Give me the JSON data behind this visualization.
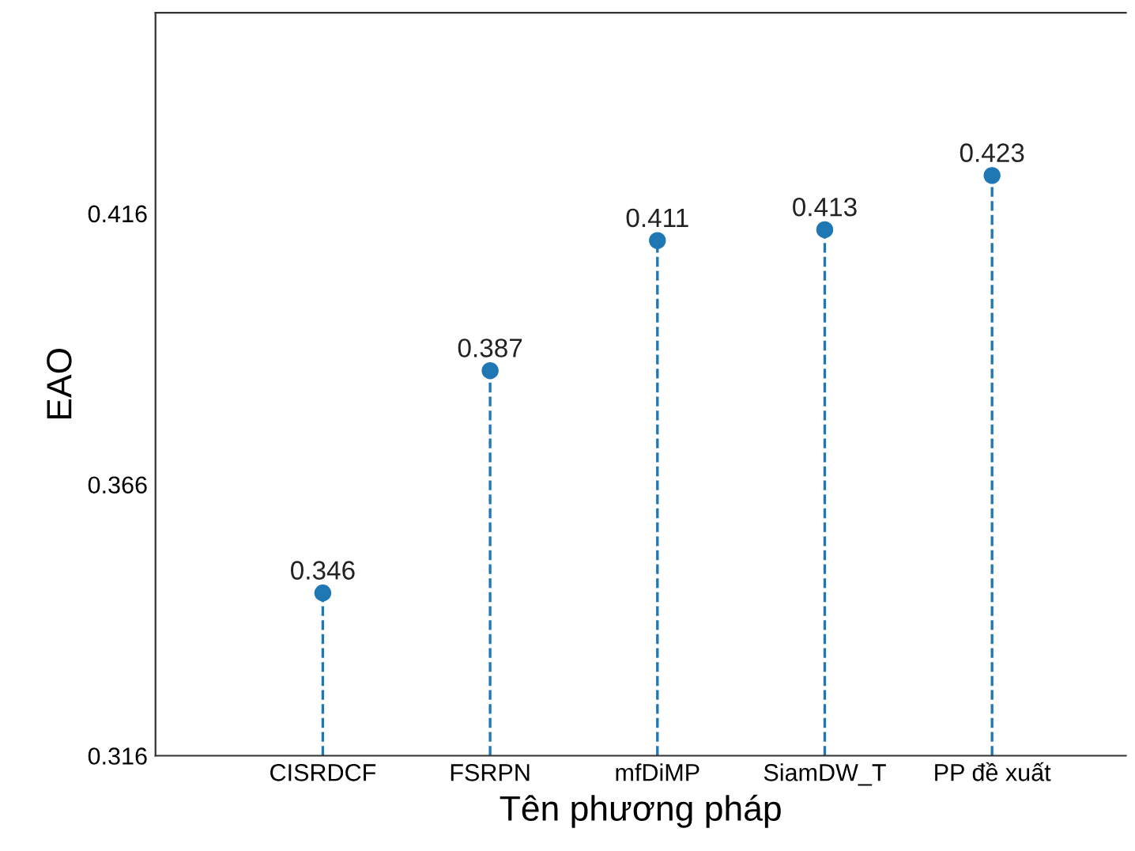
{
  "chart_data": {
    "type": "lollipop",
    "xlabel": "Tên phương pháp",
    "ylabel": "EAO",
    "categories": [
      "CISRDCF",
      "FSRPN",
      "mfDiMP",
      "SiamDW_T",
      "PP đề xuất"
    ],
    "values": [
      0.346,
      0.387,
      0.411,
      0.413,
      0.423
    ],
    "color": "#1f77b4",
    "line_style": "dashed",
    "marker": "circle",
    "data_labels": true,
    "ylim": [
      0.316,
      0.453
    ],
    "yticks": [
      0.316,
      0.366,
      0.416
    ]
  }
}
